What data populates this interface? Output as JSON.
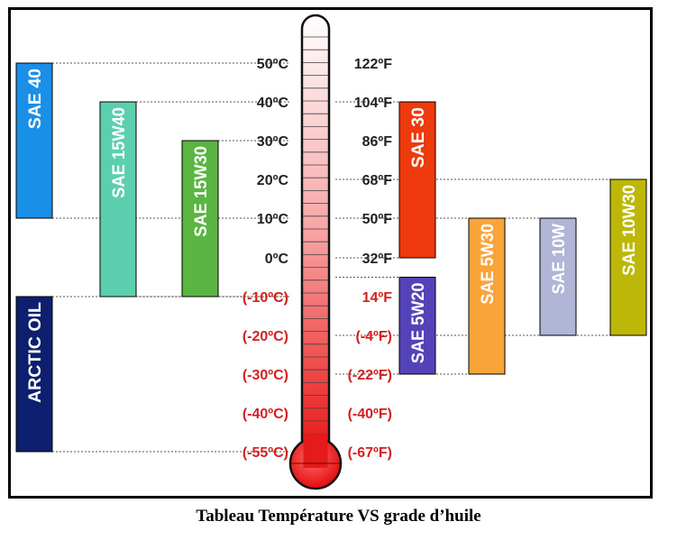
{
  "caption": "Tableau Température VS grade d’huile",
  "chart_data": {
    "type": "range-bar",
    "title": "Tableau Température VS grade d’huile",
    "celsius_ticks": [
      {
        "value": 50,
        "label": "50ºC"
      },
      {
        "value": 40,
        "label": "40ºC"
      },
      {
        "value": 30,
        "label": "30ºC"
      },
      {
        "value": 20,
        "label": "20ºC"
      },
      {
        "value": 10,
        "label": "10ºC"
      },
      {
        "value": 0,
        "label": "0ºC"
      },
      {
        "value": -10,
        "label": "(-10ºC)"
      },
      {
        "value": -20,
        "label": "(-20ºC)"
      },
      {
        "value": -30,
        "label": "(-30ºC)"
      },
      {
        "value": -40,
        "label": "(-40ºC)"
      },
      {
        "value": -55,
        "label": "(-55ºC)"
      }
    ],
    "fahrenheit_ticks": [
      {
        "value_c": 50,
        "label": "122ºF"
      },
      {
        "value_c": 40,
        "label": "104ºF"
      },
      {
        "value_c": 30,
        "label": "86ºF"
      },
      {
        "value_c": 20,
        "label": "68ºF"
      },
      {
        "value_c": 10,
        "label": "50ºF"
      },
      {
        "value_c": 0,
        "label": "32ºF"
      },
      {
        "value_c": -10,
        "label": "14ºF"
      },
      {
        "value_c": -20,
        "label": "(-4ºF)"
      },
      {
        "value_c": -30,
        "label": "(-22ºF)"
      },
      {
        "value_c": -40,
        "label": "(-40ºF)"
      },
      {
        "value_c": -55,
        "label": "(-67ºF)"
      }
    ],
    "series": [
      {
        "name": "SAE 40",
        "side": "left",
        "col": 0,
        "min_c": 10,
        "max_c": 50,
        "color": "#1a8fe8"
      },
      {
        "name": "ARCTIC OIL",
        "side": "left",
        "col": 0,
        "min_c": -55,
        "max_c": -10,
        "color": "#0d1f6e"
      },
      {
        "name": "SAE 15W40",
        "side": "left",
        "col": 1,
        "min_c": -10,
        "max_c": 40,
        "color": "#5ccfaf"
      },
      {
        "name": "SAE 15W30",
        "side": "left",
        "col": 2,
        "min_c": -10,
        "max_c": 30,
        "color": "#5ab542"
      },
      {
        "name": "SAE 30",
        "side": "right",
        "col": 0,
        "min_c": 0,
        "max_c": 40,
        "color": "#ee3a0c"
      },
      {
        "name": "SAE 5W20",
        "side": "right",
        "col": 0,
        "min_c": -30,
        "max_c": -5,
        "color": "#5443b8"
      },
      {
        "name": "SAE 5W30",
        "side": "right",
        "col": 1,
        "min_c": -30,
        "max_c": 10,
        "color": "#f9a43a"
      },
      {
        "name": "SAE 10W",
        "side": "right",
        "col": 2,
        "min_c": -20,
        "max_c": 10,
        "color": "#b1b5d6"
      },
      {
        "name": "SAE 10W30",
        "side": "right",
        "col": 3,
        "min_c": -20,
        "max_c": 20,
        "color": "#bdb708"
      }
    ],
    "colors": {
      "positive_label": "#222222",
      "negative_label": "#d42020",
      "grid_line": "#555555"
    }
  }
}
